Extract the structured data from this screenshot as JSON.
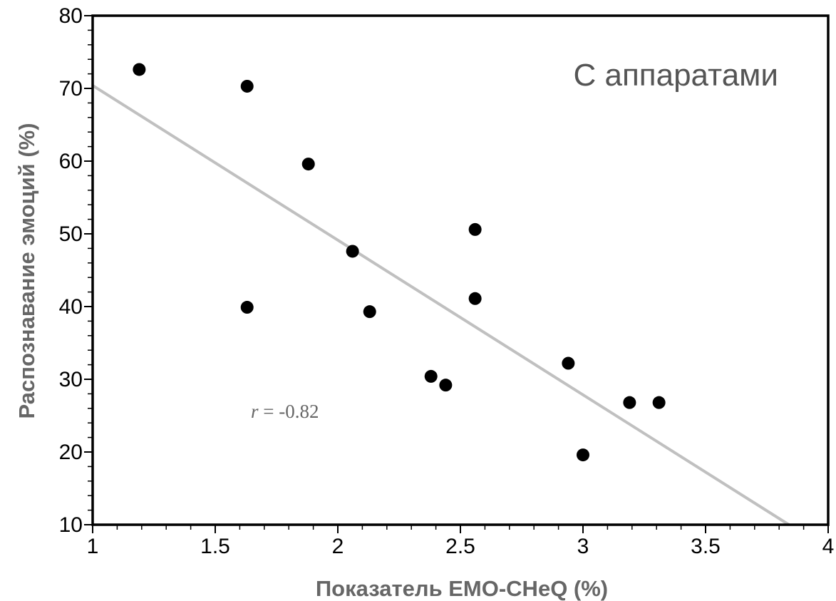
{
  "chart_data": {
    "type": "scatter",
    "title": "С аппаратами",
    "xlabel": "Показатель EMO-CHeQ (%)",
    "ylabel": "Распознавание эмоций (%)",
    "xlim": [
      1,
      4
    ],
    "ylim": [
      10,
      80
    ],
    "xticks": [
      1,
      1.5,
      2,
      2.5,
      3,
      3.5,
      4
    ],
    "xtick_labels": [
      "1",
      "1.5",
      "2",
      "2.5",
      "3",
      "3.5",
      "4"
    ],
    "yticks": [
      10,
      20,
      30,
      40,
      50,
      60,
      70,
      80
    ],
    "ytick_labels": [
      "10",
      "20",
      "30",
      "40",
      "50",
      "60",
      "70",
      "80"
    ],
    "grid": false,
    "points": [
      {
        "x": 1.19,
        "y": 72.6
      },
      {
        "x": 1.63,
        "y": 70.3
      },
      {
        "x": 1.88,
        "y": 59.6
      },
      {
        "x": 1.63,
        "y": 39.9
      },
      {
        "x": 2.06,
        "y": 47.6
      },
      {
        "x": 2.13,
        "y": 39.3
      },
      {
        "x": 2.38,
        "y": 30.4
      },
      {
        "x": 2.44,
        "y": 29.2
      },
      {
        "x": 2.56,
        "y": 50.6
      },
      {
        "x": 2.56,
        "y": 41.1
      },
      {
        "x": 2.94,
        "y": 32.2
      },
      {
        "x": 3.0,
        "y": 19.6
      },
      {
        "x": 3.19,
        "y": 26.8
      },
      {
        "x": 3.31,
        "y": 26.8
      }
    ],
    "trendline": {
      "x": [
        1,
        3.84
      ],
      "y": [
        70.4,
        10
      ]
    },
    "annotation": {
      "r_symbol": "r",
      "r_value": " = -0.82"
    },
    "colors": {
      "points": "#000000",
      "trendline": "#c0c0c0",
      "axis_title": "#666666"
    }
  }
}
